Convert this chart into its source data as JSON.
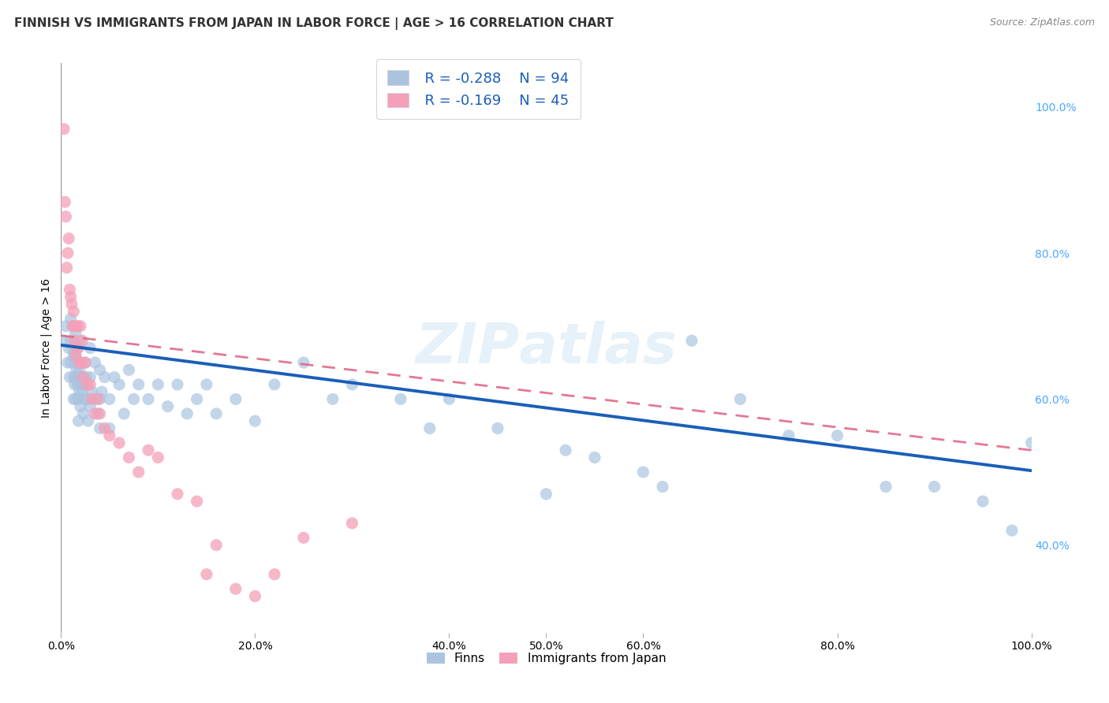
{
  "title": "FINNISH VS IMMIGRANTS FROM JAPAN IN LABOR FORCE | AGE > 16 CORRELATION CHART",
  "source": "Source: ZipAtlas.com",
  "ylabel": "In Labor Force | Age > 16",
  "ylabel_right_ticks": [
    "100.0%",
    "80.0%",
    "60.0%",
    "40.0%"
  ],
  "ylabel_right_vals": [
    1.0,
    0.8,
    0.6,
    0.4
  ],
  "finns_R": -0.288,
  "finns_N": 94,
  "japan_R": -0.169,
  "japan_N": 45,
  "finn_color": "#aac4e0",
  "japan_color": "#f4a0b8",
  "finn_line_color": "#1a5eb8",
  "japan_line_color": "#e06080",
  "xlim": [
    0.0,
    1.0
  ],
  "ylim": [
    0.28,
    1.06
  ],
  "background_color": "#ffffff",
  "grid_color": "#cccccc",
  "title_color": "#333333",
  "right_tick_color": "#4da6ff",
  "legend_label_color": "#1a5eb8",
  "finns_scatter_x": [
    0.003,
    0.005,
    0.007,
    0.008,
    0.009,
    0.01,
    0.01,
    0.01,
    0.012,
    0.012,
    0.013,
    0.013,
    0.013,
    0.014,
    0.014,
    0.014,
    0.015,
    0.015,
    0.015,
    0.015,
    0.016,
    0.016,
    0.017,
    0.017,
    0.018,
    0.018,
    0.018,
    0.019,
    0.019,
    0.02,
    0.02,
    0.02,
    0.02,
    0.021,
    0.022,
    0.023,
    0.024,
    0.025,
    0.025,
    0.026,
    0.027,
    0.028,
    0.03,
    0.03,
    0.03,
    0.032,
    0.035,
    0.035,
    0.038,
    0.04,
    0.04,
    0.04,
    0.042,
    0.045,
    0.05,
    0.05,
    0.055,
    0.06,
    0.065,
    0.07,
    0.075,
    0.08,
    0.09,
    0.1,
    0.11,
    0.12,
    0.13,
    0.14,
    0.15,
    0.16,
    0.18,
    0.2,
    0.22,
    0.25,
    0.28,
    0.3,
    0.35,
    0.38,
    0.4,
    0.45,
    0.5,
    0.52,
    0.55,
    0.6,
    0.62,
    0.65,
    0.7,
    0.75,
    0.8,
    0.85,
    0.9,
    0.95,
    1.0,
    0.98
  ],
  "finns_scatter_y": [
    0.68,
    0.7,
    0.65,
    0.67,
    0.63,
    0.71,
    0.68,
    0.65,
    0.7,
    0.67,
    0.66,
    0.63,
    0.6,
    0.68,
    0.65,
    0.62,
    0.69,
    0.66,
    0.63,
    0.6,
    0.67,
    0.64,
    0.65,
    0.62,
    0.63,
    0.6,
    0.57,
    0.64,
    0.61,
    0.68,
    0.65,
    0.62,
    0.59,
    0.63,
    0.61,
    0.58,
    0.62,
    0.65,
    0.6,
    0.63,
    0.6,
    0.57,
    0.67,
    0.63,
    0.59,
    0.61,
    0.65,
    0.6,
    0.58,
    0.64,
    0.6,
    0.56,
    0.61,
    0.63,
    0.6,
    0.56,
    0.63,
    0.62,
    0.58,
    0.64,
    0.6,
    0.62,
    0.6,
    0.62,
    0.59,
    0.62,
    0.58,
    0.6,
    0.62,
    0.58,
    0.6,
    0.57,
    0.62,
    0.65,
    0.6,
    0.62,
    0.6,
    0.56,
    0.6,
    0.56,
    0.47,
    0.53,
    0.52,
    0.5,
    0.48,
    0.68,
    0.6,
    0.55,
    0.55,
    0.48,
    0.48,
    0.46,
    0.54,
    0.42
  ],
  "japan_scatter_x": [
    0.003,
    0.004,
    0.005,
    0.006,
    0.007,
    0.008,
    0.009,
    0.01,
    0.011,
    0.012,
    0.013,
    0.014,
    0.015,
    0.015,
    0.016,
    0.017,
    0.018,
    0.019,
    0.02,
    0.021,
    0.022,
    0.023,
    0.025,
    0.027,
    0.03,
    0.032,
    0.035,
    0.038,
    0.04,
    0.045,
    0.05,
    0.06,
    0.07,
    0.08,
    0.09,
    0.1,
    0.12,
    0.14,
    0.15,
    0.16,
    0.18,
    0.2,
    0.22,
    0.25,
    0.3
  ],
  "japan_scatter_y": [
    0.97,
    0.87,
    0.85,
    0.78,
    0.8,
    0.82,
    0.75,
    0.74,
    0.73,
    0.7,
    0.72,
    0.68,
    0.7,
    0.66,
    0.67,
    0.7,
    0.67,
    0.65,
    0.7,
    0.65,
    0.68,
    0.63,
    0.65,
    0.62,
    0.62,
    0.6,
    0.58,
    0.6,
    0.58,
    0.56,
    0.55,
    0.54,
    0.52,
    0.5,
    0.53,
    0.52,
    0.47,
    0.46,
    0.36,
    0.4,
    0.34,
    0.33,
    0.36,
    0.41,
    0.43
  ],
  "x_ticks": [
    0.0,
    0.2,
    0.4,
    0.5,
    0.6,
    0.8,
    1.0
  ],
  "x_tick_labels": [
    "0.0%",
    "20.0%",
    "40.0%",
    "50.0%",
    "60.0%",
    "80.0%",
    "100.0%"
  ],
  "finn_line_start_y": 0.674,
  "finn_line_end_y": 0.502,
  "japan_line_start_y": 0.687,
  "japan_line_end_y": 0.53
}
